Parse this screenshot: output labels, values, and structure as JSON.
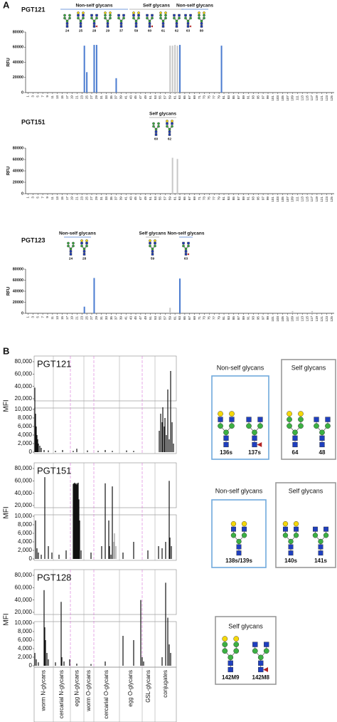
{
  "panel_labels": [
    "A",
    "B"
  ],
  "chart_data": [
    {
      "type": "bar",
      "title": "PGT121",
      "ylabel": "RFU",
      "xlim": [
        0,
        126
      ],
      "ylim": [
        0,
        80000
      ],
      "yticks": [
        0,
        20000,
        40000,
        60000,
        80000
      ],
      "xticks": [
        1,
        3,
        5,
        7,
        9,
        11,
        13,
        15,
        17,
        19,
        21,
        23,
        25,
        27,
        29,
        31,
        33,
        35,
        37,
        39,
        41,
        43,
        45,
        47,
        49,
        51,
        53,
        55,
        57,
        59,
        61,
        63,
        65,
        67,
        69,
        71,
        73,
        75,
        77,
        79,
        81,
        83,
        85,
        87,
        89,
        91,
        93,
        95,
        97,
        99,
        101,
        103,
        105,
        107,
        109,
        111,
        113,
        115,
        117,
        119,
        121,
        123,
        125
      ],
      "groups": [
        {
          "label": "Non-self glycans",
          "color": "#4a7bd0",
          "glycans": [
            "24",
            "25",
            "28",
            "29",
            "37"
          ]
        },
        {
          "label": "Self glycans",
          "color": "#a0a0a0",
          "glycans": [
            "59",
            "60",
            "61",
            "62"
          ]
        },
        {
          "label": "Non-self glycans",
          "color": "#4a7bd0",
          "glycans": [
            "63",
            "80"
          ]
        }
      ],
      "series": [
        {
          "color": "#4a7bd0",
          "x": [
            24,
            25,
            28,
            29,
            37,
            63,
            80
          ],
          "values": [
            62000,
            27000,
            63000,
            63000,
            19000,
            63000,
            62000
          ]
        },
        {
          "color": "#c8c8c8",
          "x": [
            59,
            60,
            61,
            62
          ],
          "values": [
            62000,
            62000,
            63000,
            62000
          ]
        }
      ]
    },
    {
      "type": "bar",
      "title": "PGT151",
      "ylabel": "RFU",
      "xlim": [
        0,
        126
      ],
      "ylim": [
        0,
        80000
      ],
      "yticks": [
        0,
        20000,
        40000,
        60000,
        80000
      ],
      "xticks": [
        1,
        3,
        5,
        7,
        9,
        11,
        13,
        15,
        17,
        19,
        21,
        23,
        25,
        27,
        29,
        31,
        33,
        35,
        37,
        39,
        41,
        43,
        45,
        47,
        49,
        51,
        53,
        55,
        57,
        59,
        61,
        63,
        65,
        67,
        69,
        71,
        73,
        75,
        77,
        79,
        81,
        83,
        85,
        87,
        89,
        91,
        93,
        95,
        97,
        99,
        101,
        103,
        105,
        107,
        109,
        111,
        113,
        115,
        117,
        119,
        121,
        123,
        125
      ],
      "groups": [
        {
          "label": "Self glycans",
          "color": "#a0a0a0",
          "glycans": [
            "60",
            "62"
          ]
        }
      ],
      "series": [
        {
          "color": "#c8c8c8",
          "x": [
            60,
            62
          ],
          "values": [
            63000,
            61000
          ]
        }
      ]
    },
    {
      "type": "bar",
      "title": "PGT123",
      "ylabel": "RFU",
      "xlim": [
        0,
        126
      ],
      "ylim": [
        0,
        80000
      ],
      "yticks": [
        0,
        20000,
        40000,
        60000,
        80000
      ],
      "xticks": [
        1,
        3,
        5,
        7,
        9,
        11,
        13,
        15,
        17,
        19,
        21,
        23,
        25,
        27,
        29,
        31,
        33,
        35,
        37,
        39,
        41,
        43,
        45,
        47,
        49,
        51,
        53,
        55,
        57,
        59,
        61,
        63,
        65,
        67,
        69,
        71,
        73,
        75,
        77,
        79,
        81,
        83,
        85,
        87,
        89,
        91,
        93,
        95,
        97,
        99,
        101,
        103,
        105,
        107,
        109,
        111,
        113,
        115,
        117,
        119,
        121,
        123,
        125
      ],
      "groups": [
        {
          "label": "Non-self glycans",
          "color": "#4a7bd0",
          "glycans": [
            "24",
            "28"
          ]
        },
        {
          "label": "Self glycans",
          "color": "#a0a0a0",
          "glycans": [
            "59"
          ]
        },
        {
          "label": "Non-self glycans",
          "color": "#4a7bd0",
          "glycans": [
            "63"
          ]
        }
      ],
      "series": [
        {
          "color": "#4a7bd0",
          "x": [
            24,
            28,
            63
          ],
          "values": [
            12000,
            64000,
            63000
          ]
        },
        {
          "color": "#c8c8c8",
          "x": [
            59,
            75,
            109,
            117
          ],
          "values": [
            10000,
            2000,
            4000,
            4000
          ]
        }
      ]
    },
    {
      "type": "broken_bar",
      "title": "PGT121",
      "ylabel": "MFI",
      "xlim": [
        0,
        200
      ],
      "ylim": [
        0,
        80000
      ],
      "y_break": [
        10000,
        20000
      ],
      "yticks": [
        0,
        {
          "value": 2000,
          "label": "2,000"
        },
        {
          "value": 4000,
          "label": "4,000"
        },
        {
          "value": 6000,
          "label": "6,000"
        },
        {
          "value": 8000,
          "label": "8,000"
        },
        {
          "value": 10000,
          "label": "10,000"
        },
        {
          "value": 20000,
          "label": "20,000"
        },
        {
          "value": 40000,
          "label": "40,000"
        },
        {
          "value": 60000,
          "label": "60,000"
        },
        {
          "value": 80000,
          "label": "80,000"
        }
      ],
      "series": [
        {
          "color": "#111111",
          "x": [
            1,
            2,
            3,
            4,
            5,
            6,
            8,
            10,
            14,
            20,
            30,
            40,
            55,
            60,
            75,
            90,
            100,
            110,
            130,
            140,
            176,
            178,
            180,
            181,
            183,
            184,
            186,
            188,
            190,
            192,
            194,
            196
          ],
          "values": [
            38000,
            9000,
            6000,
            4000,
            3000,
            2000,
            1500,
            1000,
            500,
            400,
            300,
            500,
            300,
            800,
            400,
            300,
            500,
            300,
            400,
            300,
            5000,
            9000,
            7000,
            12000,
            6000,
            8000,
            4000,
            35000,
            3000,
            65000,
            7000,
            2000
          ]
        }
      ]
    },
    {
      "type": "broken_bar",
      "title": "PGT151",
      "ylabel": "MFI",
      "xlim": [
        0,
        200
      ],
      "ylim": [
        0,
        80000
      ],
      "y_break": [
        10000,
        20000
      ],
      "yticks": [
        0,
        {
          "value": 2000,
          "label": "2,000"
        },
        {
          "value": 4000,
          "label": "4,000"
        },
        {
          "value": 6000,
          "label": "6,000"
        },
        {
          "value": 8000,
          "label": "8,000"
        },
        {
          "value": 10000,
          "label": "10,000"
        },
        {
          "value": 20000,
          "label": "20,000"
        },
        {
          "value": 40000,
          "label": "40,000"
        },
        {
          "value": 60000,
          "label": "60,000"
        },
        {
          "value": 80000,
          "label": "80,000"
        }
      ],
      "series": [
        {
          "color": "#111111",
          "x": [
            2,
            4,
            6,
            10,
            15,
            20,
            25,
            35,
            45,
            55,
            56,
            57,
            58,
            59,
            60,
            61,
            62,
            63,
            64,
            66,
            80,
            95,
            100,
            105,
            106,
            108,
            110,
            125,
            140,
            160,
            175,
            180,
            185,
            190,
            191,
            193
          ],
          "values": [
            9000,
            2500,
            1500,
            1000,
            66000,
            3000,
            1500,
            1000,
            2000,
            55000,
            56000,
            57000,
            55000,
            56000,
            54000,
            56000,
            57000,
            30000,
            9000,
            2000,
            1500,
            3000,
            56000,
            9000,
            3000,
            1000,
            51000,
            1500,
            4000,
            2000,
            3000,
            2500,
            4000,
            60000,
            5000,
            3000
          ]
        },
        {
          "color": "#9a9a9a",
          "x": [
            112,
            113,
            115
          ],
          "values": [
            4000,
            6000,
            3000
          ]
        }
      ]
    },
    {
      "type": "broken_bar",
      "title": "PGT128",
      "ylabel": "MFI",
      "xlim": [
        0,
        200
      ],
      "ylim": [
        0,
        80000
      ],
      "y_break": [
        10000,
        20000
      ],
      "yticks": [
        0,
        {
          "value": 2000,
          "label": "2,000"
        },
        {
          "value": 4000,
          "label": "4,000"
        },
        {
          "value": 6000,
          "label": "6,000"
        },
        {
          "value": 8000,
          "label": "8,000"
        },
        {
          "value": 10000,
          "label": "10,000"
        },
        {
          "value": 20000,
          "label": "20,000"
        },
        {
          "value": 40000,
          "label": "40,000"
        },
        {
          "value": 60000,
          "label": "60,000"
        },
        {
          "value": 80000,
          "label": "80,000"
        }
      ],
      "categories": [
        "worm N-glycans",
        "cercarial N-glycans",
        "egg N-glycans",
        "worm O-glycans",
        "cercarial O-glycans",
        "egg O-glycans",
        "GSL-glycans",
        "conjugates"
      ],
      "category_edges": [
        0,
        27,
        51,
        70,
        84,
        120,
        152,
        170,
        200
      ],
      "series": [
        {
          "color": "#111111",
          "x": [
            1,
            3,
            6,
            14,
            15,
            16,
            18,
            20,
            30,
            38,
            39,
            42,
            50,
            60,
            80,
            100,
            125,
            140,
            150,
            152,
            154,
            180,
            185,
            188,
            190,
            192
          ],
          "values": [
            3000,
            1500,
            800,
            56000,
            9000,
            6000,
            3000,
            1500,
            800,
            37000,
            2000,
            1000,
            1500,
            500,
            400,
            1000,
            7000,
            6000,
            40000,
            2000,
            1000,
            2000,
            68000,
            15000,
            5000,
            3000
          ]
        }
      ]
    }
  ],
  "glycan_panels": [
    {
      "title": "Non-self glycans",
      "border": "#6fa8dc",
      "glycans": [
        "136s",
        "137s"
      ]
    },
    {
      "title": "Self glycans",
      "border": "#999999",
      "glycans": [
        "64",
        "48"
      ]
    },
    {
      "title": "Non-self glycans",
      "border": "#6fa8dc",
      "glycans": [
        "138s/139s"
      ]
    },
    {
      "title": "Self glycans",
      "border": "#999999",
      "glycans": [
        "140s",
        "141s"
      ]
    },
    {
      "title": "Self glycans",
      "border": "#999999",
      "glycans": [
        "142M9",
        "142M8"
      ]
    }
  ]
}
